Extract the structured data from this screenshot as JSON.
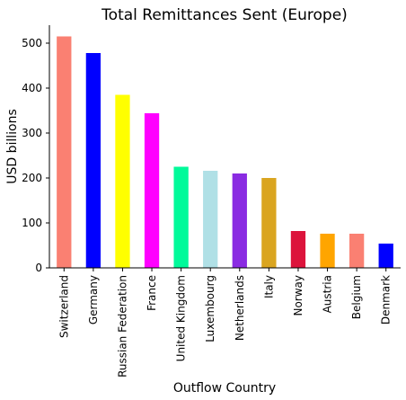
{
  "chart_data": {
    "type": "bar",
    "title": "Total Remittances Sent (Europe)",
    "xlabel": "Outflow Country",
    "ylabel": "USD billions",
    "ylim": [
      0,
      540
    ],
    "yticks": [
      0,
      100,
      200,
      300,
      400,
      500
    ],
    "grid": false,
    "legend": false,
    "categories": [
      "Switzerland",
      "Germany",
      "Russian Federation",
      "France",
      "United Kingdom",
      "Luxembourg",
      "Netherlands",
      "Italy",
      "Norway",
      "Austria",
      "Belgium",
      "Denmark"
    ],
    "values": [
      515,
      478,
      385,
      344,
      225,
      216,
      210,
      200,
      82,
      76,
      76,
      54
    ],
    "colors": [
      "#fa8072",
      "#0000ff",
      "#ffff00",
      "#ff00ff",
      "#00fa9a",
      "#b0e0e6",
      "#8a2be2",
      "#daa520",
      "#dc143c",
      "#ffa500",
      "#fa8072",
      "#0000ff"
    ]
  }
}
